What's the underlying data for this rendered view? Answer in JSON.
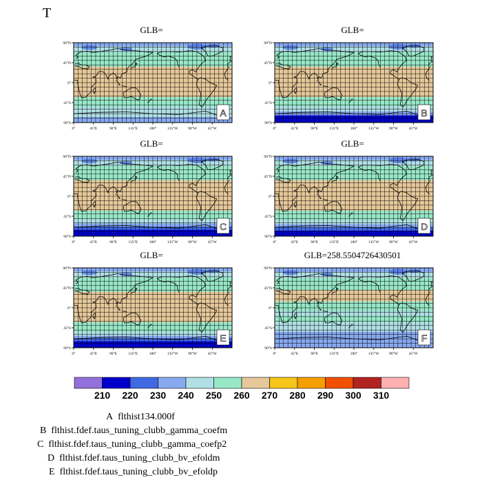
{
  "title": "T",
  "map_axes": {
    "lat_labels": [
      "90°N",
      "45°N",
      "0°",
      "45°S",
      "90°S"
    ],
    "lon_labels": [
      "0°",
      "45°E",
      "90°E",
      "135°E",
      "180°",
      "135°W",
      "90°W",
      "45°W"
    ]
  },
  "panels": [
    {
      "id": "A",
      "title": "GLB="
    },
    {
      "id": "B",
      "title": "GLB="
    },
    {
      "id": "C",
      "title": "GLB="
    },
    {
      "id": "D",
      "title": "GLB="
    },
    {
      "id": "E",
      "title": "GLB="
    },
    {
      "id": "F",
      "title": "GLB=258.5504726430501"
    }
  ],
  "colorbar": {
    "colors": [
      "#9370db",
      "#0000cd",
      "#4169e1",
      "#87a9f0",
      "#b0e0e6",
      "#98e8c8",
      "#e6c89a",
      "#f5c518",
      "#f5a000",
      "#f05000",
      "#b22222",
      "#ffb0b0"
    ],
    "labels": [
      "210",
      "220",
      "230",
      "240",
      "250",
      "260",
      "270",
      "280",
      "290",
      "300",
      "310"
    ]
  },
  "legend": [
    {
      "letter": "A",
      "text": "flthist134.000f"
    },
    {
      "letter": "B",
      "text": "flthist.fdef.taus_tuning_clubb_gamma_coefm"
    },
    {
      "letter": "C",
      "text": "flthist.fdef.taus_tuning_clubb_gamma_coefp2"
    },
    {
      "letter": "D",
      "text": "flthist.fdef.taus_tuning_clubb_bv_efoldm"
    },
    {
      "letter": "E",
      "text": "flthist.fdef.taus_tuning_clubb_bv_efoldp"
    }
  ]
}
